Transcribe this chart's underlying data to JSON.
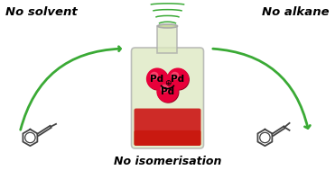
{
  "bg_color": "#ffffff",
  "no_solvent_text": "No solvent",
  "no_alkane_text": "No alkane",
  "no_isom_text": "No isomerisation",
  "arrow_color": "#3aaa35",
  "Pd_color": "#e8003a",
  "Pd_dark": "#990020",
  "Pd_highlight": "#ff6688",
  "bond_color": "#cc0022",
  "flask_glass": "#c8d8a0",
  "flask_liquid_top": "#c87820",
  "flask_liquid_bot": "#cc1010",
  "mol_color": "#444444",
  "label_fontsize": 9.5,
  "isom_fontsize": 9.0,
  "pd_fontsize": 7.5,
  "fig_w": 3.71,
  "fig_h": 1.89
}
